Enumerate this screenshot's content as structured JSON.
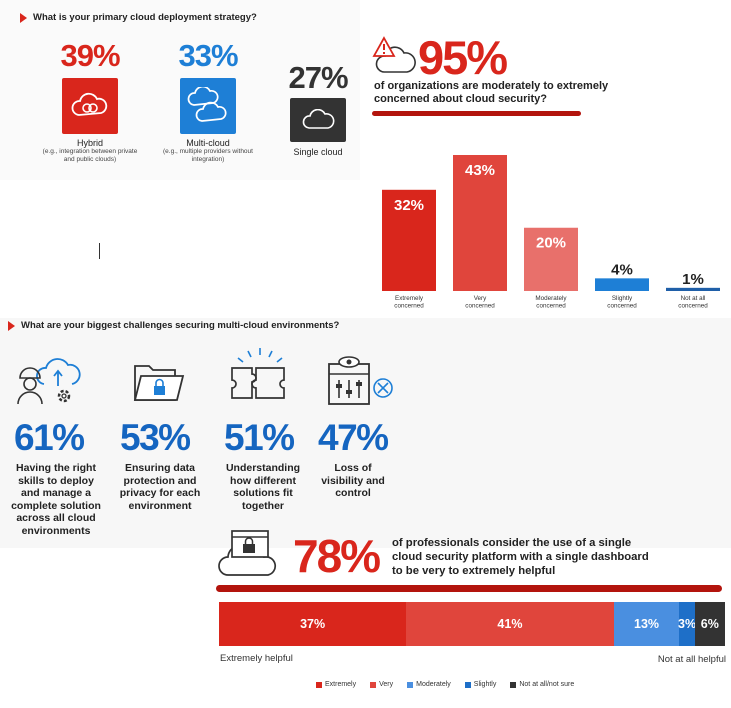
{
  "deployment": {
    "question": "What is your primary cloud deployment strategy?",
    "items": [
      {
        "pct": "39%",
        "label": "Hybrid",
        "sub": "(e.g., integration between private and public clouds)",
        "color": "#d9261c",
        "icon": "cloud-link-icon"
      },
      {
        "pct": "33%",
        "label": "Multi-cloud",
        "sub": "(e.g., multiple providers without integration)",
        "color": "#1e7fd6",
        "icon": "multi-cloud-icon"
      },
      {
        "pct": "27%",
        "label": "Single cloud",
        "sub": "",
        "color": "#333333",
        "icon": "cloud-icon"
      }
    ]
  },
  "security": {
    "headline_pct": "95%",
    "headline_text": "of organizations are moderately to extremely concerned about cloud security?",
    "icon": "cloud-warning-icon"
  },
  "concern_chart": {
    "type": "bar",
    "categories": [
      "Extremely concerned",
      "Very concerned",
      "Moderately concerned",
      "Slightly concerned",
      "Not at all concerned"
    ],
    "values": [
      32,
      43,
      20,
      4,
      1
    ],
    "value_labels": [
      "32%",
      "43%",
      "20%",
      "4%",
      "1%"
    ],
    "colors": [
      "#d9261c",
      "#e0453c",
      "#e8706b",
      "#1e7fd6",
      "#1f5fa8"
    ],
    "label_inside": [
      true,
      true,
      true,
      false,
      false
    ],
    "ylim": [
      0,
      43
    ]
  },
  "challenges": {
    "question": "What are your biggest challenges securing multi-cloud environments?",
    "items": [
      {
        "pct": "61%",
        "text": "Having the right skills to deploy and manage a complete solution across all cloud environments",
        "icon": "worker-cloud-icon"
      },
      {
        "pct": "53%",
        "text": "Ensuring data protection and privacy for each environment",
        "icon": "locked-folder-icon"
      },
      {
        "pct": "51%",
        "text": "Understanding how different solutions fit together",
        "icon": "puzzle-icon"
      },
      {
        "pct": "47%",
        "text": "Loss of visibility and control",
        "icon": "eye-controls-icon"
      }
    ]
  },
  "platform": {
    "headline_pct": "78%",
    "headline_text": "of professionals consider the use of a single cloud security platform with a single dashboard to be very to extremely helpful",
    "icon": "cloud-lock-window-icon",
    "left_caption": "Extremely helpful",
    "right_caption": "Not at all helpful"
  },
  "chart_data": [
    {
      "type": "bar",
      "categories": [
        "Extremely concerned",
        "Very concerned",
        "Moderately concerned",
        "Slightly concerned",
        "Not at all concerned"
      ],
      "values": [
        32,
        43,
        20,
        4,
        1
      ]
    },
    {
      "type": "bar",
      "stacked": true,
      "orientation": "horizontal",
      "categories": [
        "Extremely",
        "Very",
        "Moderately",
        "Slightly",
        "Not at all/not sure"
      ],
      "values": [
        37,
        41,
        13,
        3,
        6
      ]
    }
  ],
  "helpful_chart": {
    "segments": [
      {
        "name": "Extremely",
        "value": 37,
        "label": "37%",
        "color": "#d9261c"
      },
      {
        "name": "Very",
        "value": 41,
        "label": "41%",
        "color": "#e0453c"
      },
      {
        "name": "Moderately",
        "value": 13,
        "label": "13%",
        "color": "#4a8fe0"
      },
      {
        "name": "Slightly",
        "value": 3,
        "label": "3%",
        "color": "#1e6fc8"
      },
      {
        "name": "Not at all/not sure",
        "value": 6,
        "label": "6%",
        "color": "#333333"
      }
    ]
  }
}
